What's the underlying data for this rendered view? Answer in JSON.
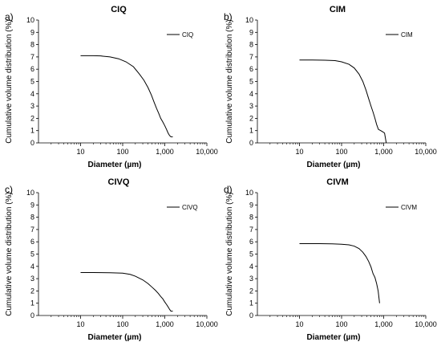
{
  "chart_data": [
    {
      "panel_label": "a)",
      "type": "line",
      "title": "CIQ",
      "xlabel": "Diameter (µm)",
      "ylabel": "Cumulative volume distribution (%)",
      "x_scale": "log",
      "xlim": [
        1,
        10000
      ],
      "ylim": [
        0,
        10
      ],
      "x_ticks": [
        10,
        100,
        1000,
        10000
      ],
      "x_tick_labels": [
        "10",
        "100",
        "1,000",
        "10,000"
      ],
      "y_ticks": [
        0,
        1,
        2,
        3,
        4,
        5,
        6,
        7,
        8,
        9,
        10
      ],
      "legend_position": "top-right",
      "series": [
        {
          "name": "CIQ",
          "x": [
            10,
            20,
            30,
            50,
            80,
            120,
            180,
            250,
            320,
            400,
            480,
            560,
            640,
            720,
            800,
            900,
            1000,
            1100,
            1200,
            1300,
            1400,
            1550
          ],
          "y": [
            7.1,
            7.1,
            7.08,
            7.0,
            6.85,
            6.6,
            6.2,
            5.6,
            5.1,
            4.5,
            3.9,
            3.3,
            2.8,
            2.4,
            2.0,
            1.7,
            1.4,
            1.1,
            0.8,
            0.6,
            0.5,
            0.5
          ]
        }
      ]
    },
    {
      "panel_label": "b)",
      "type": "line",
      "title": "CIM",
      "xlabel": "Diameter (µm)",
      "ylabel": "Cumulative volume distribution (%)",
      "x_scale": "log",
      "xlim": [
        1,
        10000
      ],
      "ylim": [
        0,
        10
      ],
      "x_ticks": [
        10,
        100,
        1000,
        10000
      ],
      "x_tick_labels": [
        "10",
        "100",
        "1,000",
        "10,000"
      ],
      "y_ticks": [
        0,
        1,
        2,
        3,
        4,
        5,
        6,
        7,
        8,
        9,
        10
      ],
      "legend_position": "top-right",
      "series": [
        {
          "name": "CIM",
          "x": [
            10,
            20,
            40,
            70,
            100,
            150,
            200,
            260,
            320,
            380,
            440,
            500,
            560,
            620,
            680,
            750,
            850,
            950,
            1050,
            1150
          ],
          "y": [
            6.75,
            6.75,
            6.73,
            6.7,
            6.6,
            6.4,
            6.1,
            5.6,
            5.0,
            4.3,
            3.6,
            3.0,
            2.5,
            2.0,
            1.5,
            1.1,
            1.0,
            0.9,
            0.8,
            0.0
          ]
        }
      ]
    },
    {
      "panel_label": "c)",
      "type": "line",
      "title": "CIVQ",
      "xlabel": "Diameter (µm)",
      "ylabel": "Cumulative volume distribution (%)",
      "x_scale": "log",
      "xlim": [
        1,
        10000
      ],
      "ylim": [
        0,
        10
      ],
      "x_ticks": [
        10,
        100,
        1000,
        10000
      ],
      "x_tick_labels": [
        "10",
        "100",
        "1,000",
        "10,000"
      ],
      "y_ticks": [
        0,
        1,
        2,
        3,
        4,
        5,
        6,
        7,
        8,
        9,
        10
      ],
      "legend_position": "top-right",
      "series": [
        {
          "name": "CIVQ",
          "x": [
            10,
            20,
            50,
            100,
            150,
            200,
            300,
            400,
            500,
            600,
            700,
            800,
            900,
            1000,
            1100,
            1200,
            1300,
            1400,
            1550
          ],
          "y": [
            3.5,
            3.5,
            3.48,
            3.45,
            3.35,
            3.2,
            2.9,
            2.6,
            2.3,
            2.05,
            1.8,
            1.55,
            1.35,
            1.1,
            0.9,
            0.7,
            0.5,
            0.35,
            0.35
          ]
        }
      ]
    },
    {
      "panel_label": "d)",
      "type": "line",
      "title": "CIVM",
      "xlabel": "Diameter (µm)",
      "ylabel": "Cumulative volume distribution (%)",
      "x_scale": "log",
      "xlim": [
        1,
        10000
      ],
      "ylim": [
        0,
        10
      ],
      "x_ticks": [
        10,
        100,
        1000,
        10000
      ],
      "x_tick_labels": [
        "10",
        "100",
        "1,000",
        "10,000"
      ],
      "y_ticks": [
        0,
        1,
        2,
        3,
        4,
        5,
        6,
        7,
        8,
        9,
        10
      ],
      "legend_position": "top-right",
      "series": [
        {
          "name": "CIVM",
          "x": [
            10,
            30,
            60,
            100,
            150,
            200,
            260,
            320,
            380,
            440,
            500,
            560,
            620,
            680,
            740,
            800
          ],
          "y": [
            5.85,
            5.85,
            5.83,
            5.8,
            5.75,
            5.65,
            5.45,
            5.15,
            4.8,
            4.4,
            3.95,
            3.4,
            3.1,
            2.6,
            2.0,
            1.0
          ]
        }
      ]
    }
  ]
}
